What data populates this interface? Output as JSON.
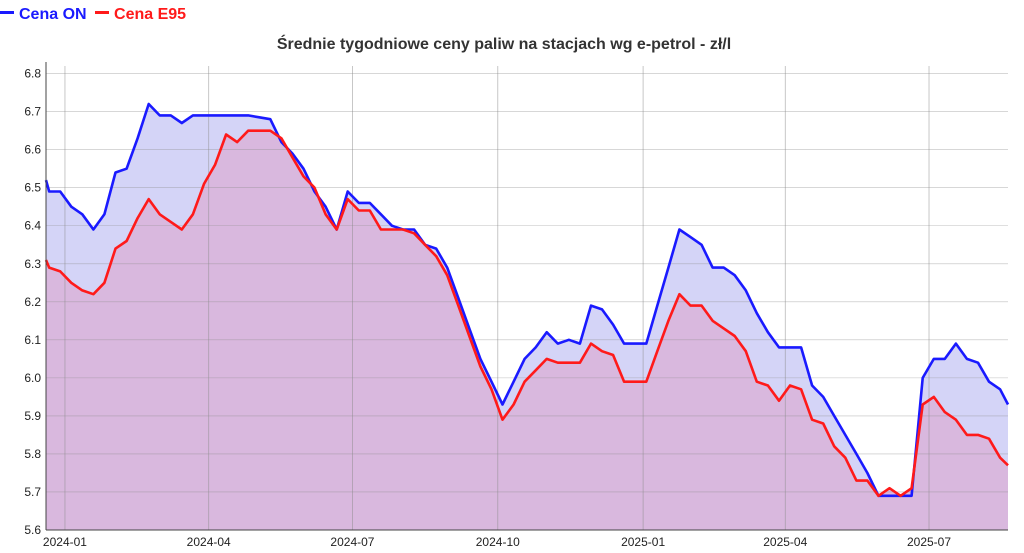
{
  "chart_data": {
    "type": "area",
    "title": "Średnie tygodniowe ceny paliw na stacjach wg e-petrol - zł/l",
    "xlabel": "",
    "ylabel": "",
    "x_ticks": [
      "2024-01",
      "2024-04",
      "2024-07",
      "2024-10",
      "2025-01",
      "2025-04",
      "2025-07"
    ],
    "y_ticks": [
      "5.6",
      "5.7",
      "5.8",
      "5.9",
      "6.0",
      "6.1",
      "6.2",
      "6.3",
      "6.4",
      "6.5",
      "6.6",
      "6.7",
      "6.8"
    ],
    "ylim": [
      5.6,
      6.82
    ],
    "xlim": [
      "2023-12-20",
      "2025-08-20"
    ],
    "legend": "top-left",
    "grid": true,
    "series": [
      {
        "name": "Cena ON",
        "color": "#1a1aff",
        "fill": "#d4d4f7",
        "x": [
          "2023-12-20",
          "2023-12-22",
          "2023-12-29",
          "2024-01-05",
          "2024-01-12",
          "2024-01-19",
          "2024-01-26",
          "2024-02-02",
          "2024-02-09",
          "2024-02-16",
          "2024-02-23",
          "2024-03-01",
          "2024-03-08",
          "2024-03-15",
          "2024-03-22",
          "2024-03-29",
          "2024-04-05",
          "2024-04-12",
          "2024-04-19",
          "2024-04-26",
          "2024-05-03",
          "2024-05-10",
          "2024-05-17",
          "2024-05-24",
          "2024-05-31",
          "2024-06-07",
          "2024-06-14",
          "2024-06-21",
          "2024-06-28",
          "2024-07-05",
          "2024-07-12",
          "2024-07-19",
          "2024-07-26",
          "2024-08-02",
          "2024-08-09",
          "2024-08-16",
          "2024-08-23",
          "2024-08-30",
          "2024-09-06",
          "2024-09-13",
          "2024-09-20",
          "2024-09-27",
          "2024-10-04",
          "2024-10-11",
          "2024-10-18",
          "2024-10-25",
          "2024-11-01",
          "2024-11-08",
          "2024-11-15",
          "2024-11-22",
          "2024-11-29",
          "2024-12-06",
          "2024-12-13",
          "2024-12-20",
          "2024-12-27",
          "2025-01-03",
          "2025-01-10",
          "2025-01-17",
          "2025-01-24",
          "2025-01-31",
          "2025-02-07",
          "2025-02-14",
          "2025-02-21",
          "2025-02-28",
          "2025-03-07",
          "2025-03-14",
          "2025-03-21",
          "2025-03-28",
          "2025-04-04",
          "2025-04-11",
          "2025-04-18",
          "2025-04-25",
          "2025-05-02",
          "2025-05-09",
          "2025-05-16",
          "2025-05-23",
          "2025-05-30",
          "2025-06-06",
          "2025-06-13",
          "2025-06-20",
          "2025-06-27",
          "2025-07-04",
          "2025-07-11",
          "2025-07-18",
          "2025-07-25",
          "2025-08-01",
          "2025-08-08",
          "2025-08-15",
          "2025-08-20"
        ],
        "values": [
          6.52,
          6.49,
          6.49,
          6.45,
          6.43,
          6.39,
          6.43,
          6.54,
          6.55,
          6.63,
          6.72,
          6.69,
          6.69,
          6.67,
          6.69,
          6.69,
          6.69,
          6.69,
          6.69,
          6.69,
          6.685,
          6.68,
          6.62,
          6.59,
          6.55,
          6.49,
          6.45,
          6.39,
          6.49,
          6.46,
          6.46,
          6.43,
          6.4,
          6.39,
          6.39,
          6.35,
          6.34,
          6.29,
          6.21,
          6.13,
          6.05,
          5.99,
          5.93,
          5.99,
          6.05,
          6.08,
          6.12,
          6.09,
          6.1,
          6.09,
          6.19,
          6.18,
          6.14,
          6.09,
          6.09,
          6.09,
          6.19,
          6.29,
          6.39,
          6.37,
          6.35,
          6.29,
          6.29,
          6.27,
          6.23,
          6.17,
          6.12,
          6.08,
          6.08,
          6.08,
          5.98,
          5.95,
          5.9,
          5.85,
          5.8,
          5.75,
          5.69,
          5.69,
          5.69,
          5.69,
          6.0,
          6.05,
          6.05,
          6.09,
          6.05,
          6.04,
          5.99,
          5.97,
          5.93
        ]
      },
      {
        "name": "Cena E95",
        "color": "#ff1a1a",
        "fill": "#d9b8de",
        "x": [
          "2023-12-20",
          "2023-12-22",
          "2023-12-29",
          "2024-01-05",
          "2024-01-12",
          "2024-01-19",
          "2024-01-26",
          "2024-02-02",
          "2024-02-09",
          "2024-02-16",
          "2024-02-23",
          "2024-03-01",
          "2024-03-08",
          "2024-03-15",
          "2024-03-22",
          "2024-03-29",
          "2024-04-05",
          "2024-04-12",
          "2024-04-19",
          "2024-04-26",
          "2024-05-03",
          "2024-05-10",
          "2024-05-17",
          "2024-05-24",
          "2024-05-31",
          "2024-06-07",
          "2024-06-14",
          "2024-06-21",
          "2024-06-28",
          "2024-07-05",
          "2024-07-12",
          "2024-07-19",
          "2024-07-26",
          "2024-08-02",
          "2024-08-09",
          "2024-08-16",
          "2024-08-23",
          "2024-08-30",
          "2024-09-06",
          "2024-09-13",
          "2024-09-20",
          "2024-09-27",
          "2024-10-04",
          "2024-10-11",
          "2024-10-18",
          "2024-10-25",
          "2024-11-01",
          "2024-11-08",
          "2024-11-15",
          "2024-11-22",
          "2024-11-29",
          "2024-12-06",
          "2024-12-13",
          "2024-12-20",
          "2024-12-27",
          "2025-01-03",
          "2025-01-10",
          "2025-01-17",
          "2025-01-24",
          "2025-01-31",
          "2025-02-07",
          "2025-02-14",
          "2025-02-21",
          "2025-02-28",
          "2025-03-07",
          "2025-03-14",
          "2025-03-21",
          "2025-03-28",
          "2025-04-04",
          "2025-04-11",
          "2025-04-18",
          "2025-04-25",
          "2025-05-02",
          "2025-05-09",
          "2025-05-16",
          "2025-05-23",
          "2025-05-30",
          "2025-06-06",
          "2025-06-13",
          "2025-06-20",
          "2025-06-27",
          "2025-07-04",
          "2025-07-11",
          "2025-07-18",
          "2025-07-25",
          "2025-08-01",
          "2025-08-08",
          "2025-08-15",
          "2025-08-20"
        ],
        "values": [
          6.31,
          6.29,
          6.28,
          6.25,
          6.23,
          6.22,
          6.25,
          6.34,
          6.36,
          6.42,
          6.47,
          6.43,
          6.41,
          6.39,
          6.43,
          6.51,
          6.56,
          6.64,
          6.62,
          6.65,
          6.65,
          6.65,
          6.63,
          6.58,
          6.53,
          6.5,
          6.43,
          6.39,
          6.47,
          6.44,
          6.44,
          6.39,
          6.39,
          6.39,
          6.38,
          6.35,
          6.32,
          6.27,
          6.19,
          6.11,
          6.03,
          5.97,
          5.89,
          5.93,
          5.99,
          6.02,
          6.05,
          6.04,
          6.04,
          6.04,
          6.09,
          6.07,
          6.06,
          5.99,
          5.99,
          5.99,
          6.07,
          6.15,
          6.22,
          6.19,
          6.19,
          6.15,
          6.13,
          6.11,
          6.07,
          5.99,
          5.98,
          5.94,
          5.98,
          5.97,
          5.89,
          5.88,
          5.82,
          5.79,
          5.73,
          5.73,
          5.69,
          5.71,
          5.69,
          5.71,
          5.93,
          5.95,
          5.91,
          5.89,
          5.85,
          5.85,
          5.84,
          5.79,
          5.77
        ]
      }
    ]
  }
}
